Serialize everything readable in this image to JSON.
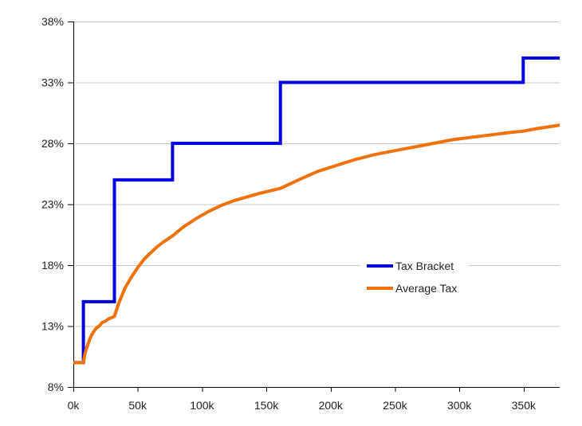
{
  "chart_data": {
    "type": "line",
    "title": "",
    "xlabel": "",
    "ylabel": "",
    "grid": "horizontal",
    "legend_position": "inside-center-right",
    "background_color": "#FFFFFF",
    "grid_color": "#C7C7C7",
    "axis_color": "#000000",
    "text_color": "#222222",
    "x_axis": {
      "unit": "dollars (thousands)",
      "min": 0,
      "max": 378,
      "ticks": [
        {
          "v": 0,
          "label": "0k"
        },
        {
          "v": 50,
          "label": "50k"
        },
        {
          "v": 100,
          "label": "100k"
        },
        {
          "v": 150,
          "label": "150k"
        },
        {
          "v": 200,
          "label": "200k"
        },
        {
          "v": 250,
          "label": "250k"
        },
        {
          "v": 300,
          "label": "300k"
        },
        {
          "v": 350,
          "label": "350k"
        }
      ]
    },
    "y_axis": {
      "unit": "percent",
      "min": 8,
      "max": 38,
      "ticks": [
        {
          "v": 8,
          "label": "8%"
        },
        {
          "v": 13,
          "label": "13%"
        },
        {
          "v": 18,
          "label": "18%"
        },
        {
          "v": 23,
          "label": "23%"
        },
        {
          "v": 28,
          "label": "28%"
        },
        {
          "v": 33,
          "label": "33%"
        },
        {
          "v": 38,
          "label": "38%"
        }
      ]
    },
    "series": [
      {
        "name": "Tax Bracket",
        "type": "step",
        "color": "#0000DE",
        "line_width": 4,
        "points": [
          [
            0,
            10
          ],
          [
            7.8,
            10
          ],
          [
            7.8,
            15
          ],
          [
            31.9,
            15
          ],
          [
            31.9,
            25
          ],
          [
            77.1,
            25
          ],
          [
            77.1,
            28
          ],
          [
            160.9,
            28
          ],
          [
            160.9,
            33
          ],
          [
            349.7,
            33
          ],
          [
            349.7,
            35
          ],
          [
            378,
            35
          ]
        ]
      },
      {
        "name": "Average Tax",
        "type": "line",
        "color": "#F2700A",
        "line_width": 4,
        "points": [
          [
            0,
            10
          ],
          [
            7.8,
            10
          ],
          [
            8,
            10.1
          ],
          [
            9,
            10.7
          ],
          [
            10,
            11.1
          ],
          [
            11,
            11.4
          ],
          [
            12,
            11.7
          ],
          [
            13,
            12.0
          ],
          [
            14,
            12.2
          ],
          [
            15,
            12.4
          ],
          [
            17.5,
            12.8
          ],
          [
            20,
            13.0
          ],
          [
            22.5,
            13.3
          ],
          [
            25,
            13.4
          ],
          [
            27.5,
            13.6
          ],
          [
            30,
            13.7
          ],
          [
            31.9,
            13.8
          ],
          [
            35,
            14.8
          ],
          [
            40,
            16.1
          ],
          [
            45,
            17.0
          ],
          [
            50,
            17.8
          ],
          [
            55,
            18.5
          ],
          [
            60,
            19.0
          ],
          [
            65,
            19.5
          ],
          [
            70,
            19.9
          ],
          [
            77.1,
            20.4
          ],
          [
            85,
            21.1
          ],
          [
            95,
            21.8
          ],
          [
            105,
            22.4
          ],
          [
            115,
            22.9
          ],
          [
            125,
            23.3
          ],
          [
            135,
            23.6
          ],
          [
            145,
            23.9
          ],
          [
            160.9,
            24.3
          ],
          [
            175,
            25.0
          ],
          [
            190,
            25.7
          ],
          [
            205,
            26.2
          ],
          [
            220,
            26.7
          ],
          [
            235,
            27.1
          ],
          [
            250,
            27.4
          ],
          [
            265,
            27.7
          ],
          [
            280,
            28.0
          ],
          [
            295,
            28.3
          ],
          [
            310,
            28.5
          ],
          [
            325,
            28.7
          ],
          [
            340,
            28.9
          ],
          [
            349.7,
            29.0
          ],
          [
            360,
            29.2
          ],
          [
            378,
            29.5
          ]
        ]
      }
    ]
  }
}
